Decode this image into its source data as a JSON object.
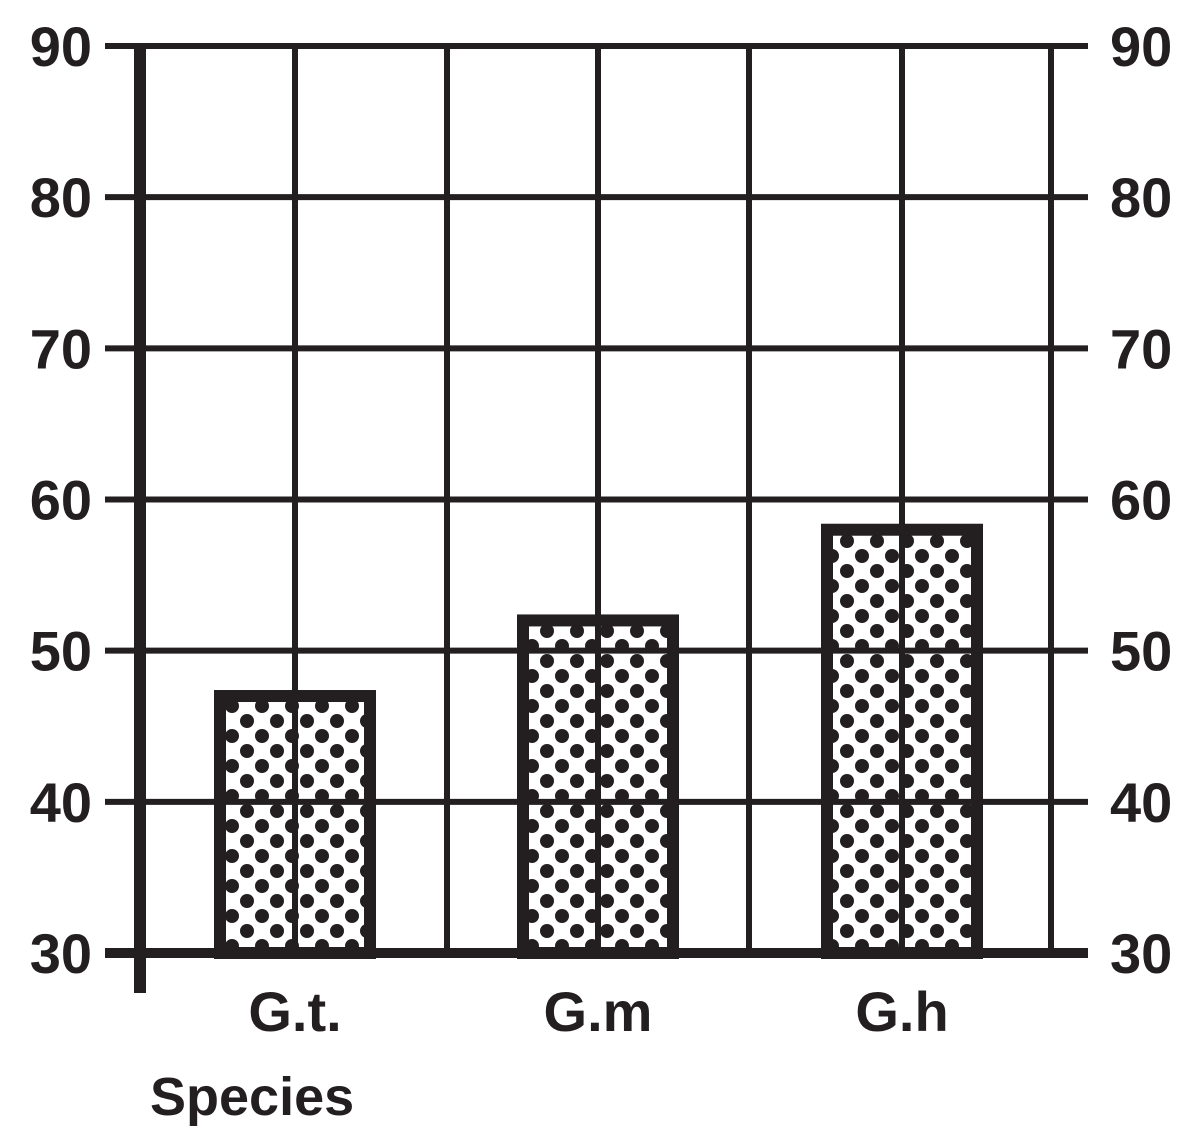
{
  "chart_data": {
    "type": "bar",
    "categories": [
      "G.t.",
      "G.m",
      "G.h"
    ],
    "values": [
      47,
      52,
      58
    ],
    "title": "",
    "xlabel": "Species",
    "ylabel": "",
    "ylim": [
      30,
      90
    ],
    "yticks": [
      30,
      40,
      50,
      60,
      70,
      80,
      90
    ],
    "ytick_labels": [
      "30",
      "40",
      "50",
      "60",
      "70",
      "80",
      "90"
    ],
    "ytick_labels_right": [
      "30",
      "40",
      "50",
      "60",
      "70",
      "80",
      "90"
    ],
    "grid": true,
    "bar_pattern": "dots",
    "colors": {
      "ink": "#231f20",
      "bar_fill": "#ffffff"
    }
  }
}
